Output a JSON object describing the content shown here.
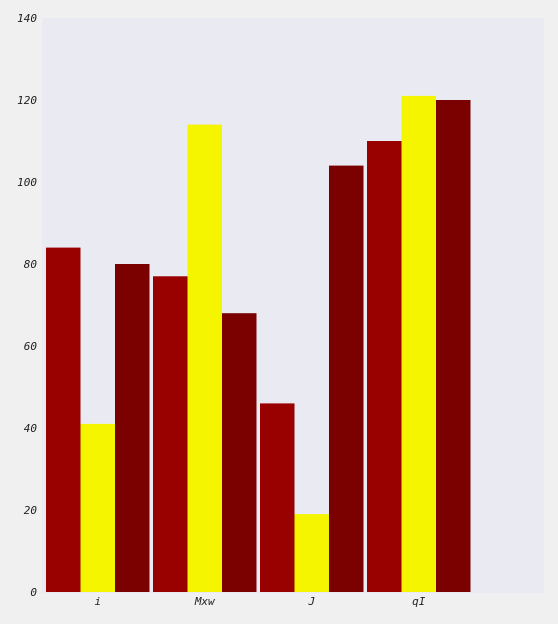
{
  "chart_data": {
    "type": "bar",
    "categories": [
      "i",
      "Mxw",
      "J",
      "qI"
    ],
    "series": [
      {
        "values": [
          84,
          77,
          46,
          110
        ],
        "color": "#990000"
      },
      {
        "values": [
          41,
          114,
          19,
          121
        ],
        "color": "#f5f500"
      },
      {
        "values": [
          80,
          68,
          104,
          120
        ],
        "color": "#7b0000"
      }
    ],
    "yticks": [
      0,
      20,
      40,
      60,
      80,
      100,
      120,
      140
    ],
    "ylim": [
      0,
      140
    ],
    "grid": false,
    "background_color": "#eaeaf2",
    "title": "",
    "xlabel": "",
    "ylabel": ""
  }
}
